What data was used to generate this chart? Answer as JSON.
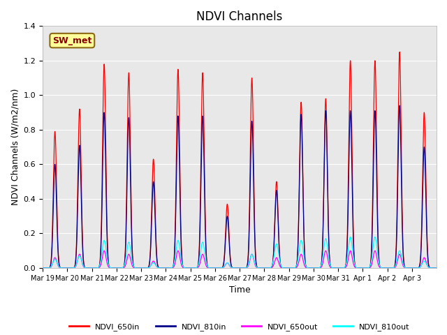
{
  "title": "NDVI Channels",
  "xlabel": "Time",
  "ylabel": "NDVI Channels (W/m2/nm)",
  "ylim": [
    0,
    1.4
  ],
  "background_color": "#e8e8e8",
  "annotation_text": "SW_met",
  "annotation_box_color": "#ffff99",
  "annotation_text_color": "#8b0000",
  "legend_entries": [
    "NDVI_650in",
    "NDVI_810in",
    "NDVI_650out",
    "NDVI_810out"
  ],
  "line_colors": [
    "#ff0000",
    "#00008b",
    "#ff00ff",
    "#00ffff"
  ],
  "xtick_labels": [
    "Mar 19",
    "Mar 20",
    "Mar 21",
    "Mar 22",
    "Mar 23",
    "Mar 24",
    "Mar 25",
    "Mar 26",
    "Mar 27",
    "Mar 28",
    "Mar 29",
    "Mar 30",
    "Mar 31",
    "Apr 1",
    "Apr 2",
    "Apr 3"
  ],
  "peaks_650in": [
    0.79,
    0.92,
    1.18,
    1.13,
    0.63,
    1.15,
    1.13,
    0.37,
    1.1,
    0.5,
    0.96,
    0.98,
    1.2,
    1.2,
    1.25,
    0.9
  ],
  "peaks_810in": [
    0.6,
    0.71,
    0.9,
    0.87,
    0.5,
    0.88,
    0.88,
    0.3,
    0.85,
    0.45,
    0.89,
    0.91,
    0.91,
    0.91,
    0.94,
    0.7
  ],
  "peaks_650out": [
    0.06,
    0.08,
    0.1,
    0.08,
    0.04,
    0.1,
    0.08,
    0.03,
    0.08,
    0.06,
    0.08,
    0.1,
    0.1,
    0.1,
    0.08,
    0.06
  ],
  "peaks_810out": [
    0.05,
    0.07,
    0.16,
    0.15,
    0.03,
    0.16,
    0.15,
    0.03,
    0.08,
    0.14,
    0.16,
    0.17,
    0.18,
    0.18,
    0.1,
    0.04
  ],
  "num_days": 16,
  "yticks": [
    0.0,
    0.2,
    0.4,
    0.6,
    0.8,
    1.0,
    1.2,
    1.4
  ]
}
